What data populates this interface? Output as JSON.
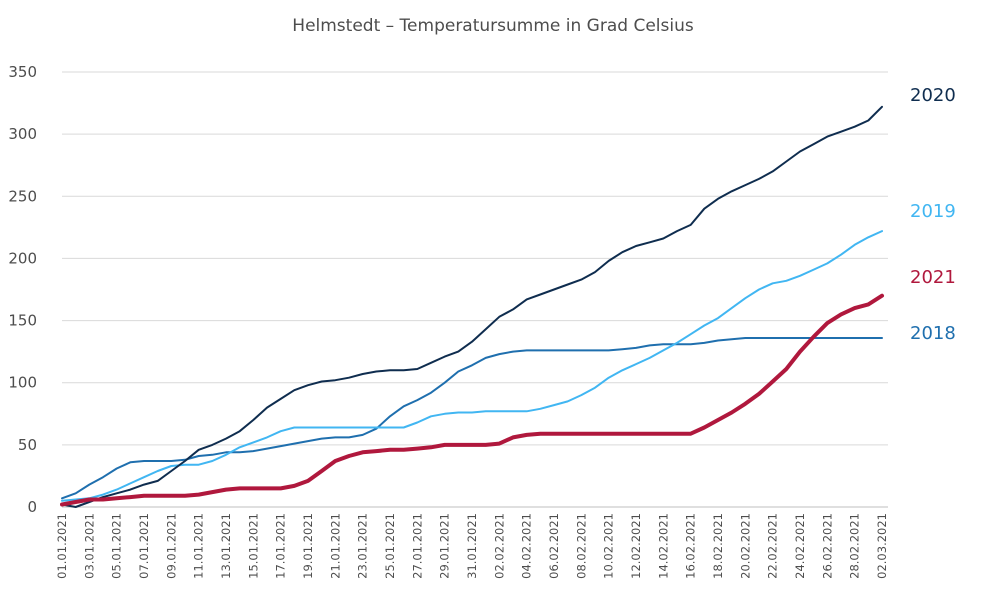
{
  "chart_data": {
    "type": "line",
    "title": "Helmstedt – Temperatursumme in Grad Celsius",
    "xlabel": "",
    "ylabel": "",
    "ylim": [
      0,
      350
    ],
    "yticks": [
      0,
      50,
      100,
      150,
      200,
      250,
      300,
      350
    ],
    "grid": true,
    "legend": "right-end-labels",
    "x": [
      "01.01.2021",
      "02.01.2021",
      "03.01.2021",
      "04.01.2021",
      "05.01.2021",
      "06.01.2021",
      "07.01.2021",
      "08.01.2021",
      "09.01.2021",
      "10.01.2021",
      "11.01.2021",
      "12.01.2021",
      "13.01.2021",
      "14.01.2021",
      "15.01.2021",
      "16.01.2021",
      "17.01.2021",
      "18.01.2021",
      "19.01.2021",
      "20.01.2021",
      "21.01.2021",
      "22.01.2021",
      "23.01.2021",
      "24.01.2021",
      "25.01.2021",
      "26.01.2021",
      "27.01.2021",
      "28.01.2021",
      "29.01.2021",
      "30.01.2021",
      "31.01.2021",
      "01.02.2021",
      "02.02.2021",
      "03.02.2021",
      "04.02.2021",
      "05.02.2021",
      "06.02.2021",
      "07.02.2021",
      "08.02.2021",
      "09.02.2021",
      "10.02.2021",
      "11.02.2021",
      "12.02.2021",
      "13.02.2021",
      "14.02.2021",
      "15.02.2021",
      "16.02.2021",
      "17.02.2021",
      "18.02.2021",
      "19.02.2021",
      "20.02.2021",
      "21.02.2021",
      "22.02.2021",
      "23.02.2021",
      "24.02.2021",
      "25.02.2021",
      "26.02.2021",
      "27.02.2021",
      "28.02.2021",
      "01.03.2021",
      "02.03.2021"
    ],
    "xtick_labels": [
      "01.01.2021",
      "03.01.2021",
      "05.01.2021",
      "07.01.2021",
      "09.01.2021",
      "11.01.2021",
      "13.01.2021",
      "15.01.2021",
      "17.01.2021",
      "19.01.2021",
      "21.01.2021",
      "23.01.2021",
      "25.01.2021",
      "27.01.2021",
      "29.01.2021",
      "31.01.2021",
      "02.02.2021",
      "04.02.2021",
      "06.02.2021",
      "08.02.2021",
      "10.02.2021",
      "12.02.2021",
      "14.02.2021",
      "16.02.2021",
      "18.02.2021",
      "20.02.2021",
      "22.02.2021",
      "24.02.2021",
      "26.02.2021",
      "28.02.2021",
      "02.03.2021"
    ],
    "series": [
      {
        "name": "2018",
        "color": "#1f6fae",
        "line_width": 2,
        "values": [
          7,
          11,
          18,
          24,
          31,
          36,
          37,
          37,
          37,
          38,
          41,
          42,
          44,
          44,
          45,
          47,
          49,
          51,
          53,
          55,
          56,
          56,
          58,
          63,
          73,
          81,
          86,
          92,
          100,
          109,
          114,
          120,
          123,
          125,
          126,
          126,
          126,
          126,
          126,
          126,
          126,
          127,
          128,
          130,
          131,
          131,
          131,
          132,
          134,
          135,
          136,
          136,
          136,
          136,
          136,
          136,
          136,
          136,
          136,
          136,
          136
        ]
      },
      {
        "name": "2019",
        "color": "#41b6f2",
        "line_width": 2,
        "values": [
          5,
          6,
          7,
          10,
          14,
          19,
          24,
          29,
          33,
          34,
          34,
          37,
          42,
          48,
          52,
          56,
          61,
          64,
          64,
          64,
          64,
          64,
          64,
          64,
          64,
          64,
          68,
          73,
          75,
          76,
          76,
          77,
          77,
          77,
          77,
          79,
          82,
          85,
          90,
          96,
          104,
          110,
          115,
          120,
          126,
          132,
          139,
          146,
          152,
          160,
          168,
          175,
          180,
          182,
          186,
          191,
          196,
          203,
          211,
          217,
          222
        ]
      },
      {
        "name": "2020",
        "color": "#0f2d4f",
        "line_width": 2,
        "values": [
          2,
          0,
          4,
          8,
          11,
          14,
          18,
          21,
          29,
          37,
          46,
          50,
          55,
          61,
          70,
          80,
          87,
          94,
          98,
          101,
          102,
          104,
          107,
          109,
          110,
          110,
          111,
          116,
          121,
          125,
          133,
          143,
          153,
          159,
          167,
          171,
          175,
          179,
          183,
          189,
          198,
          205,
          210,
          213,
          216,
          222,
          227,
          240,
          248,
          254,
          259,
          264,
          270,
          278,
          286,
          292,
          298,
          302,
          306,
          311,
          322
        ]
      },
      {
        "name": "2021",
        "color": "#b0183d",
        "line_width": 4,
        "values": [
          2,
          4,
          6,
          6,
          7,
          8,
          9,
          9,
          9,
          9,
          10,
          12,
          14,
          15,
          15,
          15,
          15,
          17,
          21,
          29,
          37,
          41,
          44,
          45,
          46,
          46,
          47,
          48,
          50,
          50,
          50,
          50,
          51,
          56,
          58,
          59,
          59,
          59,
          59,
          59,
          59,
          59,
          59,
          59,
          59,
          59,
          59,
          64,
          70,
          76,
          83,
          91,
          101,
          111,
          125,
          137,
          148,
          155,
          160,
          163,
          170
        ]
      }
    ]
  }
}
